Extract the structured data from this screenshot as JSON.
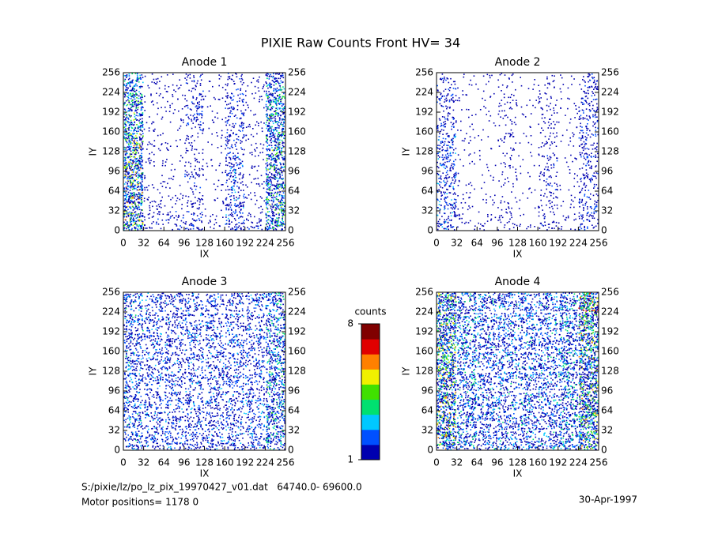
{
  "chart_data": {
    "type": "pixelmap",
    "title": "PIXIE Raw Counts Front HV= 34",
    "xlabel": "IX",
    "ylabel": "IY",
    "xlim": [
      0,
      256
    ],
    "ylim": [
      0,
      256
    ],
    "xticks": [
      0,
      32,
      64,
      96,
      128,
      160,
      192,
      224,
      256
    ],
    "yticks": [
      0,
      32,
      64,
      96,
      128,
      160,
      192,
      224,
      256
    ],
    "colorbar": {
      "label": "counts",
      "clim": [
        1,
        8
      ],
      "ticks": [
        1,
        8
      ],
      "colors": [
        "#0000b0",
        "#0050ff",
        "#00c8ff",
        "#00e070",
        "#40e000",
        "#f0f000",
        "#ff8000",
        "#e00000",
        "#800000"
      ]
    },
    "panels": [
      {
        "title": "Anode 1",
        "values": [
          [
            3,
            0.5,
            0.5,
            1,
            0.3,
            1,
            0.5,
            3
          ],
          [
            4,
            0.5,
            0.5,
            1.5,
            0.3,
            1.5,
            0.5,
            4
          ],
          [
            4,
            0.5,
            0.3,
            1.5,
            0.3,
            1.5,
            0.5,
            4
          ],
          [
            5,
            0.5,
            0.3,
            0.8,
            0.3,
            1.5,
            0.5,
            4
          ],
          [
            5,
            0.5,
            0.3,
            0.8,
            0.3,
            2,
            0.5,
            4
          ],
          [
            5,
            0.5,
            0.3,
            1,
            0.3,
            2,
            0.5,
            4
          ],
          [
            5,
            0.8,
            0.5,
            1,
            0.3,
            2,
            0.5,
            4
          ],
          [
            5,
            1,
            1,
            1.5,
            0.5,
            2,
            1,
            4
          ]
        ]
      },
      {
        "title": "Anode 2",
        "values": [
          [
            1,
            0.3,
            0.3,
            0.5,
            0.2,
            0.5,
            0.3,
            1.5
          ],
          [
            1.5,
            0.3,
            0.3,
            0.8,
            0.2,
            0.8,
            0.3,
            1.5
          ],
          [
            1.5,
            0.3,
            0.2,
            0.5,
            0.2,
            0.8,
            0.3,
            1.5
          ],
          [
            2,
            0.3,
            0.2,
            0.8,
            0.2,
            0.8,
            0.3,
            1.5
          ],
          [
            2,
            0.3,
            0.2,
            0.5,
            0.2,
            1,
            0.3,
            1.5
          ],
          [
            2,
            0.3,
            0.2,
            0.5,
            0.2,
            1,
            0.3,
            1.5
          ],
          [
            2,
            0.5,
            0.3,
            0.5,
            0.2,
            1,
            0.3,
            1.5
          ],
          [
            2,
            0.5,
            0.5,
            0.8,
            0.3,
            1,
            0.5,
            1.5
          ]
        ]
      },
      {
        "title": "Anode 3",
        "values": [
          [
            2.5,
            2,
            2,
            2,
            2,
            2,
            2,
            3
          ],
          [
            2.5,
            2,
            2,
            2,
            2,
            2,
            2,
            3
          ],
          [
            2.5,
            2,
            2,
            2,
            2,
            2,
            2,
            3
          ],
          [
            2.5,
            2,
            2,
            2,
            2,
            2,
            2,
            3
          ],
          [
            2.5,
            2,
            2,
            2,
            2,
            2,
            2,
            3.5
          ],
          [
            2.5,
            2,
            2,
            2,
            2,
            2,
            2,
            3
          ],
          [
            2.5,
            2,
            2,
            2,
            2,
            2,
            2,
            3.5
          ],
          [
            2.5,
            2,
            2,
            2,
            2,
            2,
            2,
            3
          ]
        ]
      },
      {
        "title": "Anode 4",
        "values": [
          [
            5,
            3,
            2.5,
            2.5,
            2.5,
            2.5,
            3,
            6
          ],
          [
            5,
            3,
            2.5,
            2.5,
            2.5,
            2.5,
            3,
            5
          ],
          [
            5,
            3,
            2.5,
            2.5,
            2.5,
            2.5,
            3,
            5
          ],
          [
            5,
            3,
            2.5,
            2.5,
            2.5,
            2.5,
            3,
            5
          ],
          [
            5,
            3,
            2.5,
            2.5,
            2.5,
            2.5,
            3,
            5
          ],
          [
            5,
            3,
            2.5,
            2.5,
            2.5,
            2.5,
            3,
            5
          ],
          [
            5,
            3,
            2.5,
            2.5,
            2.5,
            2.5,
            3,
            5
          ],
          [
            5,
            3,
            2.5,
            2.5,
            2.5,
            2.5,
            3,
            5
          ]
        ]
      }
    ],
    "footer_file": "S:/pixie/lz/po_lz_pix_19970427_v01.dat   64740.0- 69600.0",
    "footer_motor": "Motor positions= 1178 0",
    "date": "30-Apr-1997"
  }
}
